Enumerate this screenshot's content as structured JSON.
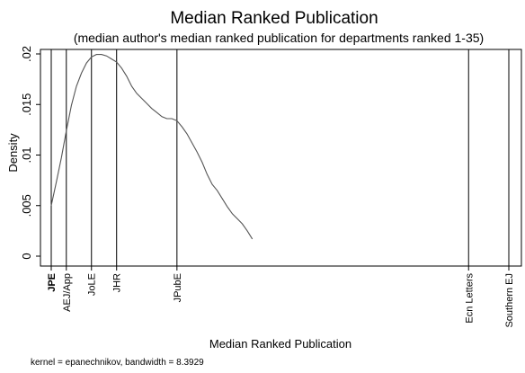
{
  "chart_data": {
    "type": "line",
    "title": "Median Ranked Publication",
    "subtitle": "(median author's median ranked publication for departments ranked 1-35)",
    "xlabel": "Median Ranked Publication",
    "ylabel": "Density",
    "note": "kernel = epanechnikov, bandwidth = 8.3929",
    "xlim": [
      1,
      92
    ],
    "ylim": [
      0,
      0.02
    ],
    "yticks": [
      {
        "value": 0,
        "label": "0"
      },
      {
        "value": 0.005,
        "label": ".005"
      },
      {
        "value": 0.01,
        "label": ".01"
      },
      {
        "value": 0.015,
        "label": ".015"
      },
      {
        "value": 0.02,
        "label": ".02"
      }
    ],
    "xticks": [
      {
        "value": 1,
        "label": "JPE",
        "bold": true
      },
      {
        "value": 4,
        "label": "AEJ/App",
        "bold": false
      },
      {
        "value": 9,
        "label": "JoLE",
        "bold": false
      },
      {
        "value": 14,
        "label": "JHR",
        "bold": false
      },
      {
        "value": 26,
        "label": "JPubE",
        "bold": false
      },
      {
        "value": 84,
        "label": "Ecn Letters",
        "bold": false
      },
      {
        "value": 92,
        "label": "Southern EJ",
        "bold": false
      }
    ],
    "grid": false,
    "series": [
      {
        "x": [
          1,
          2,
          3,
          4,
          5,
          6,
          7,
          8,
          9,
          10,
          11,
          12,
          13,
          14,
          15,
          16,
          17,
          18,
          19,
          20,
          21,
          22,
          23,
          24,
          25,
          26,
          27,
          28,
          29,
          30,
          31,
          32,
          33,
          34,
          35,
          36,
          37,
          38,
          39,
          40,
          41
        ],
        "y": [
          0.005,
          0.0073,
          0.0097,
          0.0124,
          0.0149,
          0.0168,
          0.0181,
          0.0191,
          0.0197,
          0.01995,
          0.01995,
          0.0198,
          0.0195,
          0.0192,
          0.0186,
          0.0178,
          0.0168,
          0.0161,
          0.0156,
          0.0151,
          0.0146,
          0.0142,
          0.0138,
          0.0136,
          0.0136,
          0.0134,
          0.0128,
          0.0121,
          0.0112,
          0.0103,
          0.0093,
          0.0081,
          0.0071,
          0.0065,
          0.0057,
          0.0049,
          0.0042,
          0.0037,
          0.0032,
          0.0025,
          0.0017
        ]
      }
    ]
  }
}
